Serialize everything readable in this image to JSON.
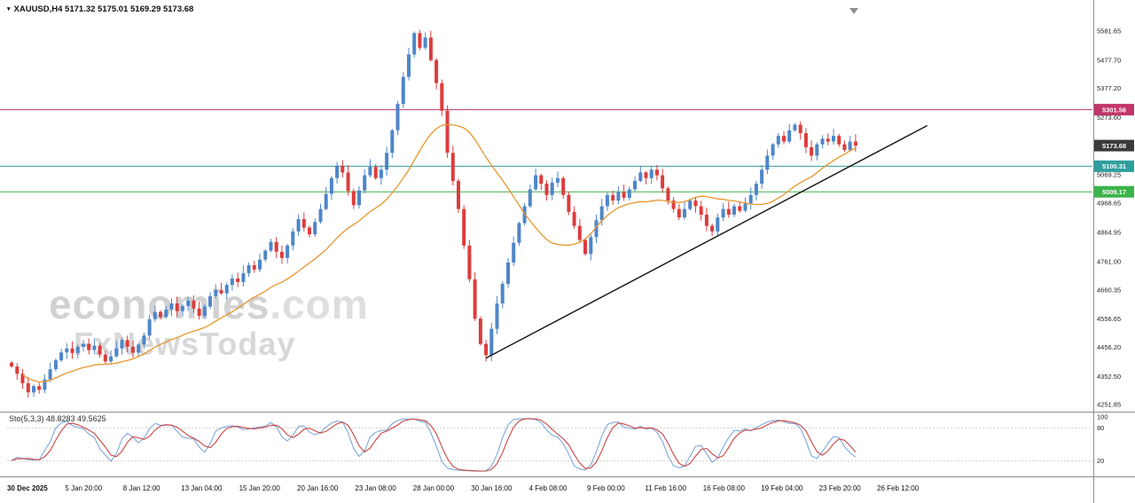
{
  "header": {
    "symbol_line": "XAUUSD,H4 5171.32 5175.01 5169.29 5173.68"
  },
  "watermark": {
    "line1_main": "economies",
    "line1_suffix": ".com",
    "line2": "FxNewsToday"
  },
  "chart_data": {
    "type": "candlestick",
    "symbol": "XAUUSD",
    "timeframe": "H4",
    "ohlc_display": {
      "open": "5171.32",
      "high": "5175.01",
      "low": "5169.29",
      "close": "5173.68"
    },
    "ylim": [
      4240,
      5660
    ],
    "first_open": 4402,
    "closes": [
      4388,
      4362,
      4328,
      4296,
      4318,
      4305,
      4342,
      4378,
      4410,
      4438,
      4452,
      4436,
      4458,
      4468,
      4446,
      4462,
      4430,
      4406,
      4424,
      4452,
      4482,
      4458,
      4437,
      4466,
      4498,
      4556,
      4582,
      4564,
      4590,
      4612,
      4585,
      4603,
      4622,
      4594,
      4568,
      4601,
      4638,
      4660,
      4648,
      4678,
      4701,
      4688,
      4720,
      4748,
      4733,
      4768,
      4800,
      4831,
      4796,
      4774,
      4818,
      4868,
      4912,
      4882,
      4858,
      4902,
      4948,
      5002,
      5058,
      5102,
      5078,
      5012,
      4962,
      5014,
      5068,
      5098,
      5058,
      5088,
      5148,
      5228,
      5322,
      5418,
      5498,
      5574,
      5522,
      5558,
      5478,
      5396,
      5298,
      5148,
      5048,
      4948,
      4818,
      4698,
      4558,
      4468,
      4428,
      4522,
      4612,
      4682,
      4758,
      4828,
      4898,
      4958,
      5018,
      5068,
      5038,
      4998,
      5042,
      5058,
      4998,
      4938,
      4888,
      4838,
      4788,
      4848,
      4908,
      4958,
      4998,
      4978,
      5008,
      4988,
      5018,
      5048,
      5078,
      5058,
      5088,
      5068,
      5022,
      4978,
      4948,
      4918,
      4948,
      4978,
      4958,
      4928,
      4888,
      4868,
      4918,
      4948,
      4928,
      4958,
      4942,
      4968,
      4998,
      5038,
      5088,
      5138,
      5178,
      5208,
      5188,
      5228,
      5248,
      5218,
      5168,
      5138,
      5178,
      5198,
      5188,
      5208,
      5178,
      5158,
      5188,
      5173.68
    ],
    "y_ticks": [
      "5581.65",
      "5477.70",
      "5377.20",
      "5273.60",
      "5069.25",
      "4968.65",
      "4864.95",
      "4761.00",
      "4660.35",
      "4556.65",
      "4456.20",
      "4352.50",
      "4251.85"
    ],
    "x_labels": [
      "30 Dec 2025",
      "5 Jan 20:00",
      "8 Jan 12:00",
      "13 Jan 04:00",
      "15 Jan 20:00",
      "20 Jan 16:00",
      "23 Jan 08:00",
      "28 Jan 00:00",
      "30 Jan 16:00",
      "4 Feb 08:00",
      "9 Feb 00:00",
      "11 Feb 16:00",
      "16 Feb 08:00",
      "19 Feb 04:00",
      "23 Feb 20:00",
      "26 Feb 12:00"
    ],
    "levels": [
      {
        "price": 5301.56,
        "label": "5301.56",
        "color": "#c2356b"
      },
      {
        "price": 5100.31,
        "label": "5100.31",
        "color": "#2f9e9e"
      },
      {
        "price": 5009.17,
        "label": "5009.17",
        "color": "#3cb34a"
      }
    ],
    "current_price": {
      "price": 5173.68,
      "label": "5173.68",
      "color": "#3a3a3a"
    },
    "ma": {
      "period": 20,
      "color": "#e8962e"
    },
    "trendline": {
      "start_index": 86,
      "start_price": 4418,
      "end_index": 166,
      "end_price": 5245,
      "color": "#151515"
    },
    "indicator": {
      "name": "Stochastic",
      "label": "Sto(5,3,3) 48.8283 49.5625",
      "k": 5,
      "d": 3,
      "slowing": 3,
      "current_main": 48.8283,
      "current_signal": 49.5625,
      "scale_ticks": [
        100,
        80,
        20
      ],
      "level_lines": [
        80,
        20
      ],
      "main_color": "#7fa8d9",
      "signal_color": "#cc4444"
    },
    "colors": {
      "up": "#4e86c8",
      "down": "#dd3c3c",
      "axis_text": "#222222",
      "separator": "#8c8c8c",
      "background": "#ffffff"
    }
  }
}
